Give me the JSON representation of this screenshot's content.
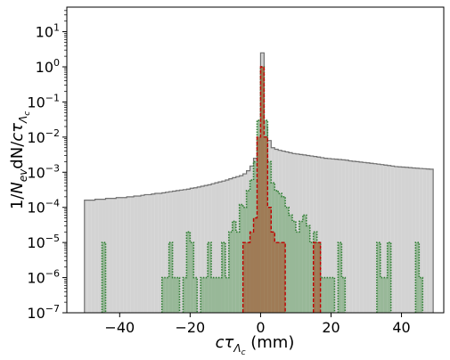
{
  "chart_data": {
    "type": "bar",
    "xlabel": "cτ_Λc (mm)",
    "ylabel": "1/N_ev dN/cτ_Λc",
    "xlim": [
      -55,
      52
    ],
    "ylim": [
      1e-07,
      50
    ],
    "yscale": "log",
    "grid": false,
    "xticks": [
      -40,
      -20,
      0,
      20,
      40
    ],
    "xtick_labels": [
      "−40",
      "−20",
      "0",
      "20",
      "40"
    ],
    "yticks": [
      1e-07,
      1e-06,
      1e-05,
      0.0001,
      0.001,
      0.01,
      0.1,
      1,
      10
    ],
    "ytick_labels": [
      {
        "base": "10",
        "exp": "−7"
      },
      {
        "base": "10",
        "exp": "−6"
      },
      {
        "base": "10",
        "exp": "−5"
      },
      {
        "base": "10",
        "exp": "−4"
      },
      {
        "base": "10",
        "exp": "−3"
      },
      {
        "base": "10",
        "exp": "−2"
      },
      {
        "base": "10",
        "exp": "−1"
      },
      {
        "base": "10",
        "exp": "0"
      },
      {
        "base": "10",
        "exp": "1"
      }
    ],
    "bin_width": 1,
    "series": [
      {
        "style": "gray-filled-solid",
        "fill": "#d3d3d3",
        "edge": "#707070",
        "bins": [
          [
            -50,
            0.00016
          ],
          [
            -49,
            0.00016
          ],
          [
            -48,
            0.00016
          ],
          [
            -47,
            0.00017
          ],
          [
            -46,
            0.00017
          ],
          [
            -45,
            0.00017
          ],
          [
            -44,
            0.00018
          ],
          [
            -43,
            0.00018
          ],
          [
            -42,
            0.00018
          ],
          [
            -41,
            0.00019
          ],
          [
            -40,
            0.00019
          ],
          [
            -39,
            0.00019
          ],
          [
            -38,
            0.0002
          ],
          [
            -37,
            0.0002
          ],
          [
            -36,
            0.00021
          ],
          [
            -35,
            0.00021
          ],
          [
            -34,
            0.00022
          ],
          [
            -33,
            0.00023
          ],
          [
            -32,
            0.00023
          ],
          [
            -31,
            0.00024
          ],
          [
            -30,
            0.00025
          ],
          [
            -29,
            0.00025
          ],
          [
            -28,
            0.00026
          ],
          [
            -27,
            0.00027
          ],
          [
            -26,
            0.00028
          ],
          [
            -25,
            0.00029
          ],
          [
            -24,
            0.0003
          ],
          [
            -23,
            0.00031
          ],
          [
            -22,
            0.00032
          ],
          [
            -21,
            0.00033
          ],
          [
            -20,
            0.00035
          ],
          [
            -19,
            0.00036
          ],
          [
            -18,
            0.00038
          ],
          [
            -17,
            0.0004
          ],
          [
            -16,
            0.00042
          ],
          [
            -15,
            0.00044
          ],
          [
            -14,
            0.00047
          ],
          [
            -13,
            0.0005
          ],
          [
            -12,
            0.00053
          ],
          [
            -11,
            0.00056
          ],
          [
            -10,
            0.0006
          ],
          [
            -9,
            0.00065
          ],
          [
            -8,
            0.0007
          ],
          [
            -7,
            0.00075
          ],
          [
            -6,
            0.0008
          ],
          [
            -5,
            0.0009
          ],
          [
            -4,
            0.0011
          ],
          [
            -3,
            0.0015
          ],
          [
            -2,
            0.0025
          ],
          [
            -1,
            0.008
          ],
          [
            0,
            2.5
          ],
          [
            1,
            0.02
          ],
          [
            2,
            0.008
          ],
          [
            3,
            0.005
          ],
          [
            4,
            0.0045
          ],
          [
            5,
            0.0042
          ],
          [
            6,
            0.004
          ],
          [
            7,
            0.0038
          ],
          [
            8,
            0.0036
          ],
          [
            9,
            0.0034
          ],
          [
            10,
            0.0033
          ],
          [
            11,
            0.0032
          ],
          [
            12,
            0.0031
          ],
          [
            13,
            0.003
          ],
          [
            14,
            0.0029
          ],
          [
            15,
            0.0028
          ],
          [
            16,
            0.0027
          ],
          [
            17,
            0.0026
          ],
          [
            18,
            0.0025
          ],
          [
            19,
            0.00245
          ],
          [
            20,
            0.0024
          ],
          [
            21,
            0.00235
          ],
          [
            22,
            0.0023
          ],
          [
            23,
            0.00225
          ],
          [
            24,
            0.0022
          ],
          [
            25,
            0.0021
          ],
          [
            26,
            0.00205
          ],
          [
            27,
            0.002
          ],
          [
            28,
            0.00195
          ],
          [
            29,
            0.0019
          ],
          [
            30,
            0.00185
          ],
          [
            31,
            0.0018
          ],
          [
            32,
            0.00175
          ],
          [
            33,
            0.0017
          ],
          [
            34,
            0.00165
          ],
          [
            35,
            0.0016
          ],
          [
            36,
            0.00155
          ],
          [
            37,
            0.0015
          ],
          [
            38,
            0.00145
          ],
          [
            39,
            0.00142
          ],
          [
            40,
            0.0014
          ],
          [
            41,
            0.00138
          ],
          [
            42,
            0.00135
          ],
          [
            43,
            0.00132
          ],
          [
            44,
            0.0013
          ],
          [
            45,
            0.00128
          ],
          [
            46,
            0.00126
          ],
          [
            47,
            0.00124
          ],
          [
            48,
            0.00122
          ]
        ]
      },
      {
        "style": "green-filled-dotted",
        "fill": "#8db38d",
        "edge": "#2e7d32",
        "bins": [
          [
            -45,
            1e-05
          ],
          [
            -28,
            1e-06
          ],
          [
            -27,
            1e-06
          ],
          [
            -26,
            1e-05
          ],
          [
            -25,
            1e-06
          ],
          [
            -24,
            1e-06
          ],
          [
            -22,
            1e-06
          ],
          [
            -21,
            2e-05
          ],
          [
            -20,
            1e-05
          ],
          [
            -19,
            1e-06
          ],
          [
            -17,
            1e-06
          ],
          [
            -16,
            1e-06
          ],
          [
            -15,
            1e-05
          ],
          [
            -14,
            1e-06
          ],
          [
            -13,
            1e-06
          ],
          [
            -12,
            1e-06
          ],
          [
            -11,
            1e-05
          ],
          [
            -10,
            1e-06
          ],
          [
            -9,
            2e-05
          ],
          [
            -8,
            4e-05
          ],
          [
            -7,
            2e-05
          ],
          [
            -6,
            0.00012
          ],
          [
            -5,
            0.0001
          ],
          [
            -4,
            0.0003
          ],
          [
            -3,
            0.0006
          ],
          [
            -2,
            0.002
          ],
          [
            -1,
            0.03
          ],
          [
            0,
            1.0
          ],
          [
            1,
            0.03
          ],
          [
            2,
            0.002
          ],
          [
            3,
            0.0005
          ],
          [
            4,
            0.0003
          ],
          [
            5,
            0.00025
          ],
          [
            6,
            0.0002
          ],
          [
            7,
            0.0001
          ],
          [
            8,
            6e-05
          ],
          [
            9,
            4e-05
          ],
          [
            10,
            2e-05
          ],
          [
            11,
            4e-05
          ],
          [
            12,
            6e-05
          ],
          [
            13,
            3e-05
          ],
          [
            14,
            1e-05
          ],
          [
            15,
            2e-05
          ],
          [
            16,
            1e-05
          ],
          [
            17,
            1e-06
          ],
          [
            18,
            1e-06
          ],
          [
            19,
            1e-06
          ],
          [
            20,
            1e-06
          ],
          [
            22,
            1e-05
          ],
          [
            23,
            1e-06
          ],
          [
            33,
            1e-05
          ],
          [
            34,
            1e-06
          ],
          [
            35,
            1e-06
          ],
          [
            36,
            1e-05
          ],
          [
            44,
            1e-05
          ],
          [
            45,
            1e-06
          ]
        ]
      },
      {
        "style": "red-filled-dashed",
        "fill": "#a0704a",
        "edge": "#c00000",
        "bins": [
          [
            -5,
            1e-05
          ],
          [
            -4,
            1e-05
          ],
          [
            -3,
            2e-05
          ],
          [
            -2,
            5e-05
          ],
          [
            -1,
            0.01
          ],
          [
            0,
            1.0
          ],
          [
            1,
            0.01
          ],
          [
            2,
            0.0001
          ],
          [
            3,
            2e-05
          ],
          [
            4,
            1e-05
          ],
          [
            5,
            1e-05
          ],
          [
            6,
            1e-05
          ],
          [
            15,
            1e-05
          ],
          [
            16,
            1e-05
          ]
        ]
      }
    ]
  }
}
